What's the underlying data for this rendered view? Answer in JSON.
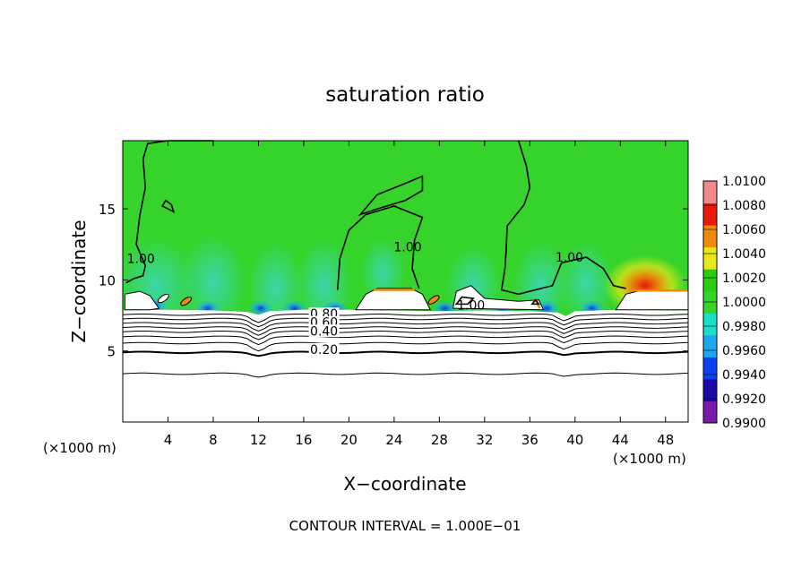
{
  "chart_data": {
    "type": "heatmap",
    "title": "saturation ratio",
    "xlabel": "X−coordinate",
    "ylabel": "Z−coordinate",
    "x_unit_left": "(×1000 m)",
    "x_unit_right": "(×1000 m)",
    "xlim": [
      0,
      50
    ],
    "ylim": [
      0,
      19.8
    ],
    "x_ticks": [
      4,
      8,
      12,
      16,
      20,
      24,
      28,
      32,
      36,
      40,
      44,
      48
    ],
    "y_ticks": [
      5,
      10,
      15
    ],
    "x_tick_labels": [
      "4",
      "8",
      "12",
      "16",
      "20",
      "24",
      "28",
      "32",
      "36",
      "40",
      "44",
      "48"
    ],
    "y_tick_labels": [
      "5",
      "10",
      "15"
    ],
    "footer": "CONTOUR INTERVAL = 1.000E−01",
    "colorbar": {
      "levels": [
        0.99,
        0.992,
        0.994,
        0.996,
        0.998,
        1.0,
        1.002,
        1.004,
        1.006,
        1.008,
        1.01
      ],
      "labels": [
        "1.0100",
        "1.0080",
        "1.0060",
        "1.0040",
        "1.0020",
        "1.0000",
        "0.9980",
        "0.9960",
        "0.9940",
        "0.9920",
        "0.9900"
      ],
      "colors": [
        "#7a1aa8",
        "#1a0aa8",
        "#0a40f0",
        "#1aa8f0",
        "#18e0c8",
        "#36d42a",
        "#2ccc10",
        "#e8e818",
        "#f08a0a",
        "#e81a0a",
        "#f08a8a"
      ]
    },
    "contour_labels": [
      {
        "text": "1.00",
        "x": 1.6,
        "z": 11.2
      },
      {
        "text": "1.00",
        "x": 25.2,
        "z": 12.0
      },
      {
        "text": "1.00",
        "x": 39.5,
        "z": 11.3
      },
      {
        "text": "1.00",
        "x": 30.8,
        "z": 7.9
      },
      {
        "text": "0.80",
        "x": 17.8,
        "z": 7.3
      },
      {
        "text": "0.60",
        "x": 17.8,
        "z": 6.7
      },
      {
        "text": "0.40",
        "x": 17.8,
        "z": 6.1
      },
      {
        "text": "0.20",
        "x": 17.8,
        "z": 4.8
      }
    ],
    "contour_levels_below_cloud": [
      0.9,
      0.8,
      0.7,
      0.6,
      0.5,
      0.4,
      0.3,
      0.2,
      0.1
    ],
    "background_value": 1.0
  }
}
